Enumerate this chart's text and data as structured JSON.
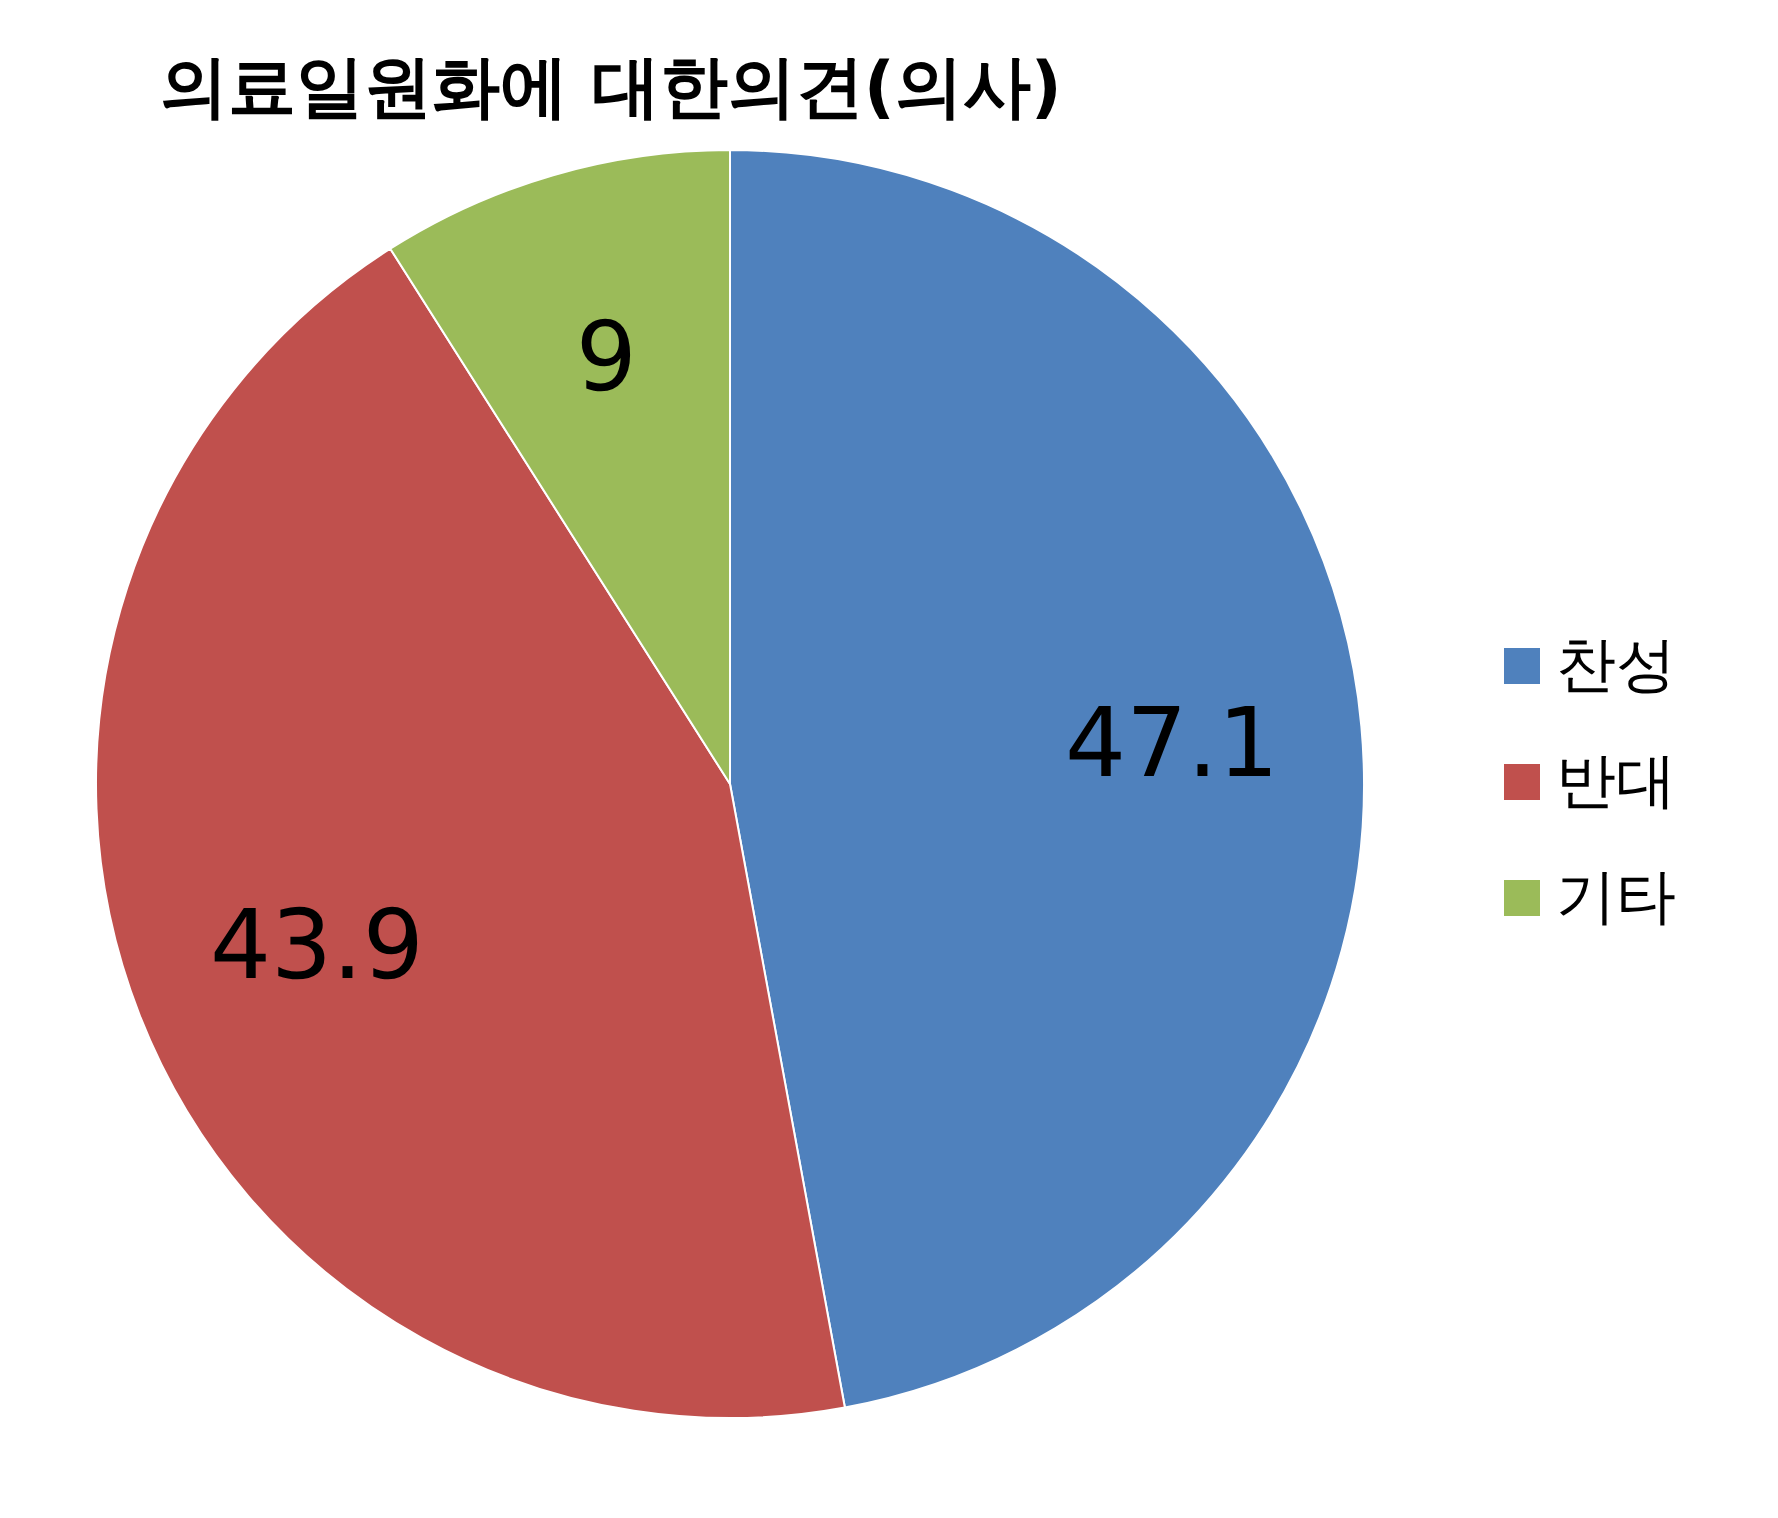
{
  "chart_data": {
    "type": "pie",
    "title": "의료일원화에 대한의견(의사)",
    "categories": [
      "찬성",
      "반대",
      "기타"
    ],
    "values": [
      47.1,
      43.9,
      9
    ],
    "colors": [
      "#4f81bd",
      "#c0504d",
      "#9bbb59"
    ],
    "data_labels": true,
    "legend": "right"
  }
}
